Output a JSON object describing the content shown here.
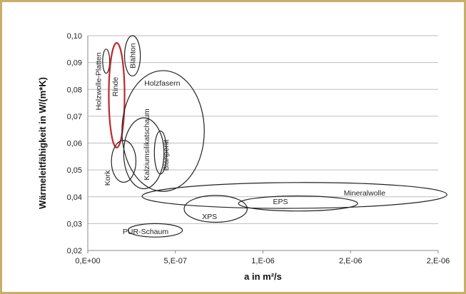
{
  "chart_data": {
    "type": "scatter",
    "xlabel": "a in m²/s",
    "ylabel": "Wärmeleitfähigkeit  in W/(m*K)",
    "xlim": [
      0,
      2e-06
    ],
    "ylim": [
      0.02,
      0.1
    ],
    "x_ticks": [
      {
        "value": 0,
        "label": "0,E+00"
      },
      {
        "value": 5e-07,
        "label": "5,E-07"
      },
      {
        "value": 1e-06,
        "label": "1,E-06"
      },
      {
        "value": 1.5e-06,
        "label": "2,E-06"
      },
      {
        "value": 2e-06,
        "label": "2,E-06"
      }
    ],
    "y_ticks": [
      {
        "value": 0.02,
        "label": "0,02"
      },
      {
        "value": 0.03,
        "label": "0,03"
      },
      {
        "value": 0.04,
        "label": "0,04"
      },
      {
        "value": 0.05,
        "label": "0,05"
      },
      {
        "value": 0.06,
        "label": "0,06"
      },
      {
        "value": 0.07,
        "label": "0,07"
      },
      {
        "value": 0.08,
        "label": "0,08"
      },
      {
        "value": 0.09,
        "label": "0,09"
      },
      {
        "value": 0.1,
        "label": "0,10"
      }
    ],
    "grid": "horizontal",
    "regions": [
      {
        "name": "Holzwolle-Platten",
        "cx": 1.05e-07,
        "cy": 0.0905,
        "rx": 2e-08,
        "ry": 0.0045,
        "angle": 0,
        "color": "#222222",
        "label_x": 6.5e-08,
        "label_y": 0.083,
        "vertical": true
      },
      {
        "name": "Rinde",
        "cx": 1.65e-07,
        "cy": 0.0778,
        "rx": 4.5e-08,
        "ry": 0.0195,
        "angle": 0,
        "color": "#c0282a",
        "label_x": 1.6e-07,
        "label_y": 0.081,
        "vertical": true
      },
      {
        "name": "Blähton",
        "cx": 2.55e-07,
        "cy": 0.0925,
        "rx": 4.5e-08,
        "ry": 0.0075,
        "angle": 0,
        "color": "#222222",
        "label_x": 2.6e-07,
        "label_y": 0.0925,
        "vertical": true
      },
      {
        "name": "Holzfasern",
        "cx": 4.3e-07,
        "cy": 0.0645,
        "rx": 2.35e-07,
        "ry": 0.0225,
        "angle": 0,
        "color": "#222222",
        "label_x": 4.25e-07,
        "label_y": 0.0822,
        "vertical": false
      },
      {
        "name": "Kalziumsilikatschaum",
        "cx": 3.2e-07,
        "cy": 0.0562,
        "rx": 1.15e-07,
        "ry": 0.0132,
        "angle": 0,
        "color": "#222222",
        "label_x": 3.4e-07,
        "label_y": 0.0595,
        "vertical": true
      },
      {
        "name": "Blähperlit",
        "cx": 4.15e-07,
        "cy": 0.0565,
        "rx": 3.5e-08,
        "ry": 0.008,
        "angle": 0,
        "color": "#222222",
        "label_x": 4.5e-07,
        "label_y": 0.0555,
        "vertical": true
      },
      {
        "name": "Kork",
        "cx": 2.05e-07,
        "cy": 0.0532,
        "rx": 7e-08,
        "ry": 0.0078,
        "angle": 0,
        "color": "#222222",
        "label_x": 1.15e-07,
        "label_y": 0.047,
        "vertical": true
      },
      {
        "name": "Mineralwolle",
        "cx": 1.18e-06,
        "cy": 0.0405,
        "rx": 8.7e-07,
        "ry": 0.0048,
        "angle": -0.3,
        "color": "#222222",
        "label_x": 1.58e-06,
        "label_y": 0.0412,
        "vertical": false
      },
      {
        "name": "EPS",
        "cx": 1.2e-06,
        "cy": 0.0375,
        "rx": 3.4e-07,
        "ry": 0.0028,
        "angle": 0,
        "color": "#222222",
        "label_x": 1.1e-06,
        "label_y": 0.038,
        "vertical": false
      },
      {
        "name": "XPS",
        "cx": 7.3e-07,
        "cy": 0.0355,
        "rx": 1.8e-07,
        "ry": 0.005,
        "angle": 0,
        "color": "#222222",
        "label_x": 6.95e-07,
        "label_y": 0.0325,
        "vertical": false
      },
      {
        "name": "PUR-Schaum",
        "cx": 3.85e-07,
        "cy": 0.0275,
        "rx": 1.55e-07,
        "ry": 0.0025,
        "angle": 0,
        "color": "#222222",
        "label_x": 3.3e-07,
        "label_y": 0.0268,
        "vertical": false
      }
    ]
  }
}
